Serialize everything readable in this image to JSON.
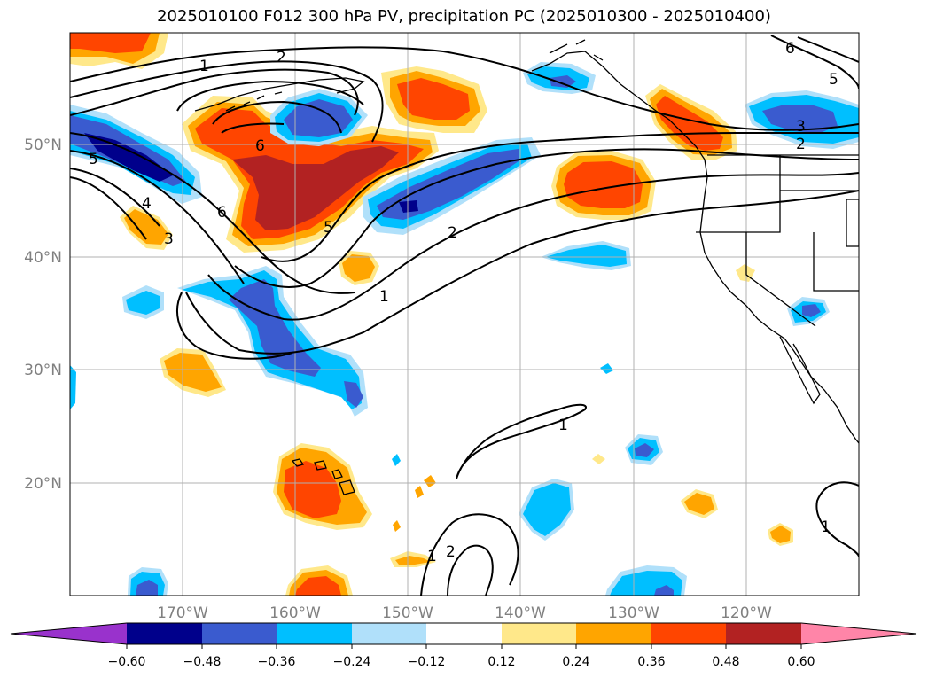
{
  "title": "2025010100 F012 300 hPa PV, precipitation PC (2025010300 - 2025010400)",
  "map": {
    "projection": "PlateCarree",
    "lon_range": [
      -180,
      -110
    ],
    "lat_range": [
      10,
      60
    ],
    "grid": true,
    "lat_labels": [
      "50°N",
      "40°N",
      "30°N",
      "20°N"
    ],
    "lon_labels": [
      "170°W",
      "160°W",
      "150°W",
      "140°W",
      "130°W",
      "120°W"
    ],
    "pv_contour_labels": [
      "1",
      "2",
      "6",
      "5",
      "4",
      "3",
      "6",
      "5",
      "2",
      "1",
      "5",
      "6",
      "3",
      "2",
      "1",
      "1",
      "2",
      "1"
    ]
  },
  "colorbar": {
    "extend": "both",
    "ticks": [
      "−0.60",
      "−0.48",
      "−0.36",
      "−0.24",
      "−0.12",
      "0.12",
      "0.24",
      "0.36",
      "0.48",
      "0.60"
    ],
    "colors": {
      "under": "#9932cc",
      "lt_m060": "#9932cc",
      "m060_m048": "#00008b",
      "m048_m036": "#3a5bcf",
      "m036_m024": "#00bfff",
      "m024_m012": "#b0e0fa",
      "m012_012": "#ffffff",
      "p012_024": "#ffe88a",
      "p024_036": "#ffa500",
      "p036_048": "#ff4500",
      "p048_060": "#b22222",
      "over": "#ff85a8"
    }
  }
}
